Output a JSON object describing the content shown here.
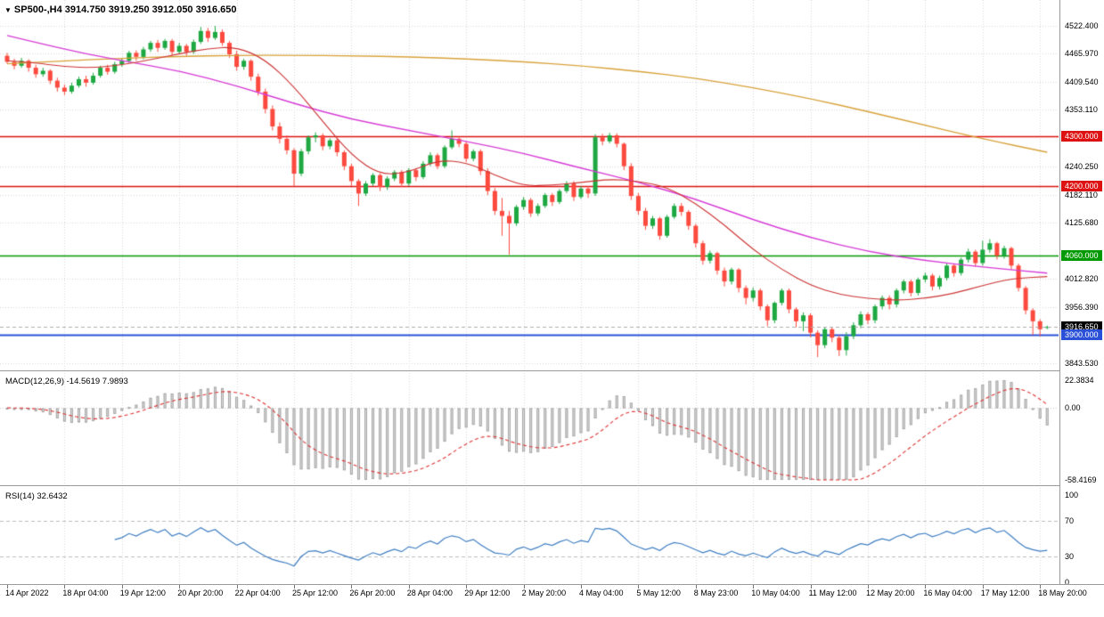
{
  "header": {
    "collapse_icon": "▼",
    "symbol": "SP500-,H4",
    "ohlc": "3914.750 3919.250 3912.050 3916.650"
  },
  "colors": {
    "up": "#1da841",
    "down": "#fc4a3f",
    "grid": "#d6d6d6",
    "maOrange": "#d8a23a",
    "maMagenta": "#d63cd6",
    "maRed": "#cc3333",
    "hlineRed": "#dd1111",
    "hlineGreen": "#009900",
    "hlineBlue": "#2a50d8",
    "badgeBlack": "#000000",
    "priceLine": "#adadad",
    "macdHist": "#dcdcdc",
    "macdHistEdge": "#a6a6a6",
    "macdSignal": "#dd3333",
    "macdZero": "#c6c6c6",
    "rsiLine": "#3f7ec2",
    "rsiLevel": "#bcbcbc",
    "axisText": "#000000"
  },
  "chart_data": {
    "type": "candlestick",
    "symbol": "SP500-",
    "timeframe": "H4",
    "ohlc_display": {
      "open": "3914.750",
      "high": "3919.250",
      "low": "3912.050",
      "close": "3916.650"
    },
    "ylim": [
      3829.2,
      4574.3
    ],
    "price_ticks": [
      {
        "label": "4522.400",
        "value": 4522.4
      },
      {
        "label": "4465.970",
        "value": 4465.97
      },
      {
        "label": "4409.540",
        "value": 4409.54
      },
      {
        "label": "4353.110",
        "value": 4353.11
      },
      {
        "label": "4240.250",
        "value": 4240.25
      },
      {
        "label": "4182.110",
        "value": 4182.11
      },
      {
        "label": "4125.680",
        "value": 4125.68
      },
      {
        "label": "4012.820",
        "value": 4012.82
      },
      {
        "label": "3956.390",
        "value": 3956.39
      },
      {
        "label": "3843.530",
        "value": 3843.53
      }
    ],
    "price_badges": [
      {
        "label": "4300.000",
        "value": 4300.0,
        "bg_key": "hlineRed"
      },
      {
        "label": "4200.000",
        "value": 4200.0,
        "bg_key": "hlineRed"
      },
      {
        "label": "4060.000",
        "value": 4060.0,
        "bg_key": "hlineGreen"
      },
      {
        "label": "3916.650",
        "value": 3916.65,
        "bg_key": "badgeBlack"
      },
      {
        "label": "3900.000",
        "value": 3900.0,
        "bg_key": "hlineBlue"
      }
    ],
    "hlines": [
      {
        "value": 4300.0,
        "color_key": "hlineRed",
        "width": 1.3
      },
      {
        "value": 4200.0,
        "color_key": "hlineRed",
        "width": 1.3
      },
      {
        "value": 4060.0,
        "color_key": "hlineGreen",
        "width": 1.6
      },
      {
        "value": 3900.0,
        "color_key": "hlineBlue",
        "width": 2.0
      }
    ],
    "current_price": {
      "value": 3916.65,
      "label": "3916.650"
    },
    "candles": [
      [
        4462,
        4468,
        4446,
        4450
      ],
      [
        4450,
        4456,
        4435,
        4442
      ],
      [
        4442,
        4458,
        4438,
        4452
      ],
      [
        4452,
        4455,
        4430,
        4438
      ],
      [
        4438,
        4444,
        4418,
        4425
      ],
      [
        4425,
        4438,
        4420,
        4432
      ],
      [
        4432,
        4435,
        4405,
        4412
      ],
      [
        4412,
        4418,
        4390,
        4398
      ],
      [
        4398,
        4404,
        4383,
        4390
      ],
      [
        4390,
        4408,
        4386,
        4402
      ],
      [
        4402,
        4420,
        4398,
        4415
      ],
      [
        4415,
        4422,
        4400,
        4408
      ],
      [
        4408,
        4428,
        4404,
        4422
      ],
      [
        4422,
        4442,
        4418,
        4438
      ],
      [
        4438,
        4444,
        4424,
        4430
      ],
      [
        4430,
        4450,
        4426,
        4445
      ],
      [
        4445,
        4458,
        4440,
        4452
      ],
      [
        4452,
        4472,
        4448,
        4468
      ],
      [
        4468,
        4473,
        4452,
        4460
      ],
      [
        4460,
        4480,
        4455,
        4475
      ],
      [
        4475,
        4492,
        4470,
        4488
      ],
      [
        4488,
        4494,
        4470,
        4478
      ],
      [
        4478,
        4496,
        4474,
        4492
      ],
      [
        4492,
        4496,
        4463,
        4470
      ],
      [
        4470,
        4488,
        4465,
        4482
      ],
      [
        4482,
        4486,
        4462,
        4470
      ],
      [
        4470,
        4495,
        4466,
        4490
      ],
      [
        4490,
        4520,
        4486,
        4512
      ],
      [
        4512,
        4518,
        4490,
        4498
      ],
      [
        4498,
        4522,
        4494,
        4510
      ],
      [
        4510,
        4515,
        4482,
        4488
      ],
      [
        4488,
        4492,
        4458,
        4465
      ],
      [
        4465,
        4472,
        4432,
        4440
      ],
      [
        4440,
        4456,
        4434,
        4452
      ],
      [
        4452,
        4455,
        4412,
        4420
      ],
      [
        4420,
        4426,
        4382,
        4390
      ],
      [
        4390,
        4396,
        4346,
        4355
      ],
      [
        4355,
        4362,
        4312,
        4320
      ],
      [
        4320,
        4328,
        4286,
        4295
      ],
      [
        4295,
        4302,
        4264,
        4272
      ],
      [
        4272,
        4276,
        4199,
        4225
      ],
      [
        4225,
        4275,
        4220,
        4270
      ],
      [
        4270,
        4302,
        4264,
        4298
      ],
      [
        4298,
        4308,
        4288,
        4302
      ],
      [
        4302,
        4306,
        4272,
        4280
      ],
      [
        4280,
        4296,
        4274,
        4292
      ],
      [
        4292,
        4295,
        4260,
        4268
      ],
      [
        4268,
        4272,
        4232,
        4240
      ],
      [
        4240,
        4245,
        4200,
        4210
      ],
      [
        4210,
        4214,
        4160,
        4185
      ],
      [
        4185,
        4210,
        4180,
        4205
      ],
      [
        4205,
        4226,
        4200,
        4222
      ],
      [
        4222,
        4226,
        4190,
        4198
      ],
      [
        4198,
        4220,
        4192,
        4215
      ],
      [
        4215,
        4232,
        4210,
        4228
      ],
      [
        4228,
        4232,
        4198,
        4205
      ],
      [
        4205,
        4236,
        4200,
        4232
      ],
      [
        4232,
        4236,
        4210,
        4218
      ],
      [
        4218,
        4250,
        4214,
        4245
      ],
      [
        4245,
        4268,
        4240,
        4262
      ],
      [
        4262,
        4266,
        4234,
        4240
      ],
      [
        4240,
        4282,
        4236,
        4278
      ],
      [
        4278,
        4312,
        4274,
        4295
      ],
      [
        4295,
        4300,
        4278,
        4285
      ],
      [
        4285,
        4290,
        4248,
        4255
      ],
      [
        4255,
        4274,
        4250,
        4270
      ],
      [
        4270,
        4274,
        4222,
        4230
      ],
      [
        4230,
        4236,
        4182,
        4190
      ],
      [
        4190,
        4196,
        4142,
        4150
      ],
      [
        4150,
        4176,
        4100,
        4140
      ],
      [
        4140,
        4150,
        4062,
        4125
      ],
      [
        4125,
        4162,
        4120,
        4158
      ],
      [
        4158,
        4178,
        4152,
        4172
      ],
      [
        4172,
        4176,
        4138,
        4145
      ],
      [
        4145,
        4165,
        4140,
        4160
      ],
      [
        4160,
        4186,
        4156,
        4182
      ],
      [
        4182,
        4186,
        4160,
        4168
      ],
      [
        4168,
        4194,
        4164,
        4190
      ],
      [
        4190,
        4210,
        4186,
        4205
      ],
      [
        4205,
        4210,
        4170,
        4178
      ],
      [
        4178,
        4200,
        4174,
        4195
      ],
      [
        4195,
        4200,
        4176,
        4185
      ],
      [
        4185,
        4304,
        4180,
        4298
      ],
      [
        4298,
        4305,
        4282,
        4290
      ],
      [
        4290,
        4307,
        4286,
        4302
      ],
      [
        4302,
        4306,
        4278,
        4285
      ],
      [
        4285,
        4288,
        4232,
        4240
      ],
      [
        4240,
        4246,
        4172,
        4180
      ],
      [
        4180,
        4186,
        4142,
        4150
      ],
      [
        4150,
        4156,
        4112,
        4120
      ],
      [
        4120,
        4140,
        4114,
        4135
      ],
      [
        4135,
        4138,
        4092,
        4100
      ],
      [
        4100,
        4142,
        4096,
        4138
      ],
      [
        4138,
        4165,
        4134,
        4160
      ],
      [
        4160,
        4166,
        4140,
        4148
      ],
      [
        4148,
        4152,
        4112,
        4120
      ],
      [
        4120,
        4124,
        4076,
        4085
      ],
      [
        4085,
        4090,
        4042,
        4050
      ],
      [
        4050,
        4070,
        4044,
        4065
      ],
      [
        4065,
        4068,
        4022,
        4030
      ],
      [
        4030,
        4036,
        3998,
        4008
      ],
      [
        4008,
        4036,
        4002,
        4032
      ],
      [
        4032,
        4035,
        3986,
        3995
      ],
      [
        3995,
        4000,
        3962,
        3975
      ],
      [
        3975,
        3996,
        3968,
        3990
      ],
      [
        3990,
        3994,
        3950,
        3958
      ],
      [
        3958,
        3962,
        3918,
        3930
      ],
      [
        3930,
        3968,
        3924,
        3965
      ],
      [
        3965,
        3994,
        3960,
        3990
      ],
      [
        3990,
        3994,
        3944,
        3952
      ],
      [
        3952,
        3956,
        3916,
        3928
      ],
      [
        3928,
        3946,
        3908,
        3940
      ],
      [
        3940,
        3944,
        3896,
        3905
      ],
      [
        3905,
        3910,
        3856,
        3880
      ],
      [
        3880,
        3916,
        3874,
        3912
      ],
      [
        3912,
        3916,
        3886,
        3895
      ],
      [
        3895,
        3900,
        3858,
        3870
      ],
      [
        3870,
        3906,
        3859,
        3898
      ],
      [
        3898,
        3926,
        3892,
        3920
      ],
      [
        3920,
        3948,
        3914,
        3942
      ],
      [
        3942,
        3946,
        3922,
        3930
      ],
      [
        3930,
        3962,
        3924,
        3958
      ],
      [
        3958,
        3980,
        3952,
        3975
      ],
      [
        3975,
        3980,
        3952,
        3962
      ],
      [
        3962,
        3994,
        3956,
        3990
      ],
      [
        3990,
        4012,
        3984,
        4008
      ],
      [
        4008,
        4012,
        3978,
        3985
      ],
      [
        3985,
        4016,
        3980,
        4012
      ],
      [
        4012,
        4026,
        4006,
        4020
      ],
      [
        4020,
        4024,
        3990,
        3998
      ],
      [
        3998,
        4020,
        3992,
        4015
      ],
      [
        4015,
        4044,
        4010,
        4040
      ],
      [
        4040,
        4044,
        4018,
        4025
      ],
      [
        4025,
        4056,
        4020,
        4052
      ],
      [
        4052,
        4074,
        4046,
        4068
      ],
      [
        4068,
        4072,
        4038,
        4045
      ],
      [
        4045,
        4090,
        4040,
        4072
      ],
      [
        4072,
        4093,
        4066,
        4085
      ],
      [
        4085,
        4088,
        4052,
        4060
      ],
      [
        4060,
        4080,
        4054,
        4075
      ],
      [
        4075,
        4078,
        4032,
        4040
      ],
      [
        4040,
        4044,
        3988,
        3995
      ],
      [
        3995,
        3999,
        3942,
        3950
      ],
      [
        3950,
        3954,
        3900,
        3928
      ],
      [
        3928,
        3932,
        3898,
        3912
      ],
      [
        3914.75,
        3919.25,
        3912.05,
        3916.65
      ]
    ],
    "ma_lines": [
      {
        "name": "slow-ma-orange",
        "color_key": "maOrange",
        "width": 1.4,
        "anchors": [
          [
            0,
            4446
          ],
          [
            8,
            4452
          ],
          [
            16,
            4457
          ],
          [
            24,
            4461
          ],
          [
            32,
            4463
          ],
          [
            40,
            4463
          ],
          [
            48,
            4462
          ],
          [
            56,
            4460
          ],
          [
            64,
            4456
          ],
          [
            72,
            4450
          ],
          [
            80,
            4442
          ],
          [
            88,
            4431
          ],
          [
            96,
            4417
          ],
          [
            104,
            4398
          ],
          [
            112,
            4376
          ],
          [
            120,
            4350
          ],
          [
            128,
            4322
          ],
          [
            136,
            4295
          ],
          [
            145,
            4268
          ]
        ]
      },
      {
        "name": "medium-ma-magenta",
        "color_key": "maMagenta",
        "width": 1.4,
        "anchors": [
          [
            0,
            4503
          ],
          [
            8,
            4475
          ],
          [
            16,
            4452
          ],
          [
            24,
            4432
          ],
          [
            32,
            4402
          ],
          [
            40,
            4366
          ],
          [
            48,
            4334
          ],
          [
            56,
            4312
          ],
          [
            64,
            4290
          ],
          [
            72,
            4266
          ],
          [
            80,
            4236
          ],
          [
            88,
            4208
          ],
          [
            96,
            4174
          ],
          [
            104,
            4132
          ],
          [
            112,
            4096
          ],
          [
            120,
            4068
          ],
          [
            128,
            4050
          ],
          [
            136,
            4037
          ],
          [
            145,
            4025
          ]
        ]
      },
      {
        "name": "fast-ma-red",
        "color_key": "maRed",
        "width": 1.1,
        "anchors": [
          [
            0,
            4452
          ],
          [
            4,
            4448
          ],
          [
            8,
            4440
          ],
          [
            12,
            4438
          ],
          [
            16,
            4444
          ],
          [
            20,
            4454
          ],
          [
            24,
            4466
          ],
          [
            28,
            4477
          ],
          [
            32,
            4480
          ],
          [
            36,
            4455
          ],
          [
            40,
            4400
          ],
          [
            44,
            4330
          ],
          [
            48,
            4262
          ],
          [
            52,
            4222
          ],
          [
            56,
            4228
          ],
          [
            60,
            4252
          ],
          [
            64,
            4248
          ],
          [
            68,
            4222
          ],
          [
            72,
            4200
          ],
          [
            76,
            4202
          ],
          [
            80,
            4207
          ],
          [
            84,
            4214
          ],
          [
            88,
            4210
          ],
          [
            92,
            4198
          ],
          [
            96,
            4165
          ],
          [
            100,
            4122
          ],
          [
            104,
            4072
          ],
          [
            108,
            4032
          ],
          [
            112,
            4000
          ],
          [
            116,
            3982
          ],
          [
            120,
            3974
          ],
          [
            124,
            3970
          ],
          [
            128,
            3974
          ],
          [
            132,
            3984
          ],
          [
            136,
            4000
          ],
          [
            140,
            4014
          ],
          [
            145,
            4018
          ]
        ]
      }
    ],
    "time_axis": {
      "step_bars": 8,
      "labels": [
        "14 Apr 2022",
        "18 Apr 04:00",
        "19 Apr 12:00",
        "20 Apr 20:00",
        "22 Apr 04:00",
        "25 Apr 12:00",
        "26 Apr 20:00",
        "28 Apr 04:00",
        "29 Apr 12:00",
        "2 May 20:00",
        "4 May 04:00",
        "5 May 12:00",
        "8 May 23:00",
        "10 May 04:00",
        "11 May 12:00",
        "12 May 20:00",
        "16 May 04:00",
        "17 May 12:00",
        "18 May 20:00"
      ]
    },
    "indicators": {
      "macd": {
        "title": "MACD(12,26,9)",
        "values": "-14.5619 7.9893",
        "fast": 12,
        "slow": 26,
        "signal": 9,
        "axis": {
          "max": 22.3834,
          "min": -58.4169
        },
        "axis_labels": [
          "22.3834",
          "0.00",
          "-58.4169"
        ]
      },
      "rsi": {
        "title": "RSI(14)",
        "value": "32.6432",
        "period": 14,
        "levels": [
          70,
          30
        ],
        "range": [
          0,
          100
        ],
        "axis_labels": [
          "100",
          "70",
          "30",
          "0"
        ]
      }
    }
  }
}
